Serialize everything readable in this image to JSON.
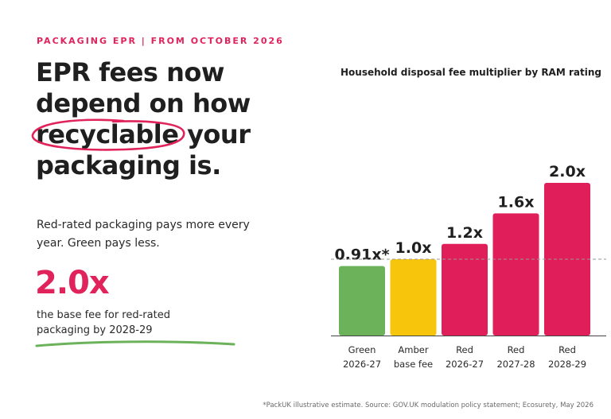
{
  "eyebrow": "PACKAGING EPR  |  FROM OCTOBER 2026",
  "headline": {
    "line1": "EPR fees now",
    "line2": "depend on how",
    "line3_circled": "recyclable",
    "line3_rest": " your",
    "line4": "packaging is."
  },
  "subtext": "Red-rated packaging pays more every year. Green pays less.",
  "stat": {
    "value": "2.0x",
    "caption": "the base fee for red-rated packaging by 2028-29"
  },
  "footnote": "*PackUK illustrative estimate. Source: GOV.UK modulation policy statement; Ecosurety, May 2026",
  "colors": {
    "accent": "#e0235a",
    "green": "#6bb25a",
    "amber": "#f7c60c",
    "red": "#e01e5a"
  },
  "chart_data": {
    "type": "bar",
    "title": "Household disposal fee multiplier by RAM rating",
    "categories": [
      [
        "Green",
        "2026-27"
      ],
      [
        "Amber",
        "base fee"
      ],
      [
        "Red",
        "2026-27"
      ],
      [
        "Red",
        "2027-28"
      ],
      [
        "Red",
        "2028-29"
      ]
    ],
    "values": [
      0.91,
      1.0,
      1.2,
      1.6,
      2.0
    ],
    "value_labels": [
      "0.91x*",
      "1.0x",
      "1.2x",
      "1.6x",
      "2.0x"
    ],
    "bar_colors": [
      "#6bb25a",
      "#f7c60c",
      "#e01e5a",
      "#e01e5a",
      "#e01e5a"
    ],
    "reference_line": 1.0,
    "ylim": [
      0,
      2.0
    ],
    "grid": false
  }
}
